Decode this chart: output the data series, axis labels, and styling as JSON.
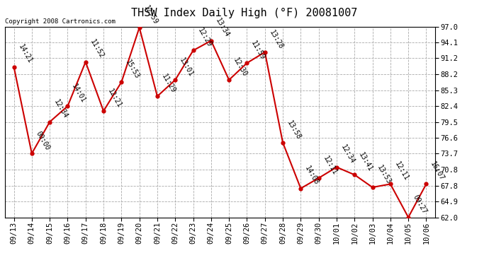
{
  "title": "THSW Index Daily High (°F) 20081007",
  "copyright": "Copyright 2008 Cartronics.com",
  "x_labels": [
    "09/13",
    "09/14",
    "09/15",
    "09/16",
    "09/17",
    "09/18",
    "09/19",
    "09/20",
    "09/21",
    "09/22",
    "09/23",
    "09/24",
    "09/25",
    "09/26",
    "09/27",
    "09/28",
    "09/29",
    "09/30",
    "10/01",
    "10/02",
    "10/03",
    "10/04",
    "10/05",
    "10/06"
  ],
  "y_values": [
    89.6,
    73.7,
    79.5,
    82.4,
    90.5,
    81.5,
    86.8,
    96.8,
    84.2,
    87.2,
    92.6,
    94.4,
    87.2,
    90.3,
    92.3,
    75.7,
    67.3,
    69.2,
    71.2,
    69.8,
    67.5,
    68.1,
    62.0,
    68.1
  ],
  "point_labels": [
    "14:21",
    "00:00",
    "12:34",
    "14:01",
    "11:52",
    "12:21",
    "15:53",
    "12:59",
    "11:29",
    "13:01",
    "12:29",
    "13:34",
    "12:30",
    "11:59",
    "13:28",
    "13:58",
    "14:08",
    "12:11",
    "12:34",
    "13:41",
    "13:53",
    "12:11",
    "09:27",
    "16:07"
  ],
  "y_ticks": [
    62.0,
    64.9,
    67.8,
    70.8,
    73.7,
    76.6,
    79.5,
    82.4,
    85.3,
    88.2,
    91.2,
    94.1,
    97.0
  ],
  "line_color": "#cc0000",
  "marker_color": "#cc0000",
  "background_color": "#ffffff",
  "grid_color": "#aaaaaa",
  "title_fontsize": 11,
  "tick_fontsize": 7.5,
  "label_fontsize": 7,
  "copyright_fontsize": 6.5
}
